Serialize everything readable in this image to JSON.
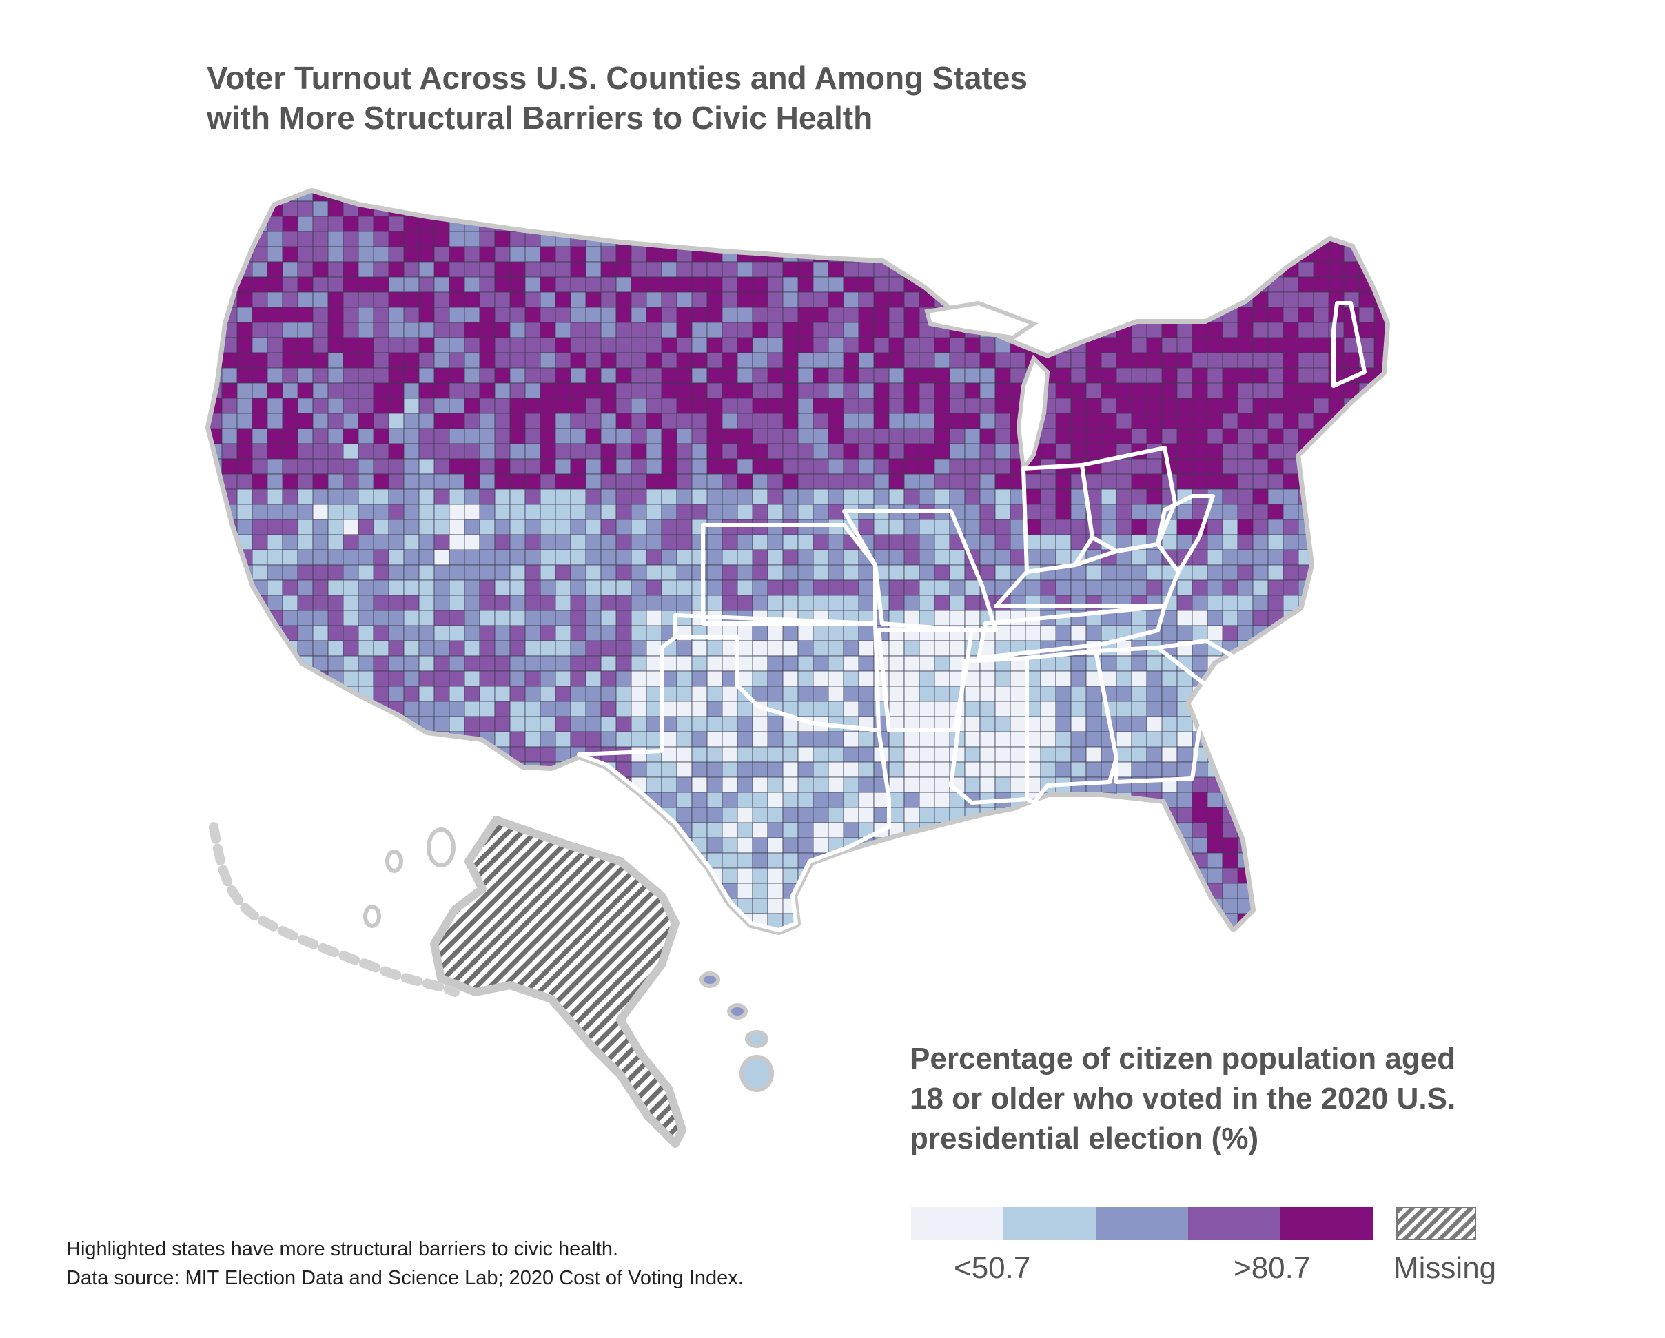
{
  "title": {
    "line1": "Voter Turnout Across U.S. Counties and Among States",
    "line2": "with More Structural Barriers to Civic Health"
  },
  "legend": {
    "title_line1": "Percentage of citizen population aged",
    "title_line2": "18 or older who voted in the 2020 U.S.",
    "title_line3": "presidential election (%)",
    "low_label": "<50.7",
    "high_label": ">80.7",
    "missing_label": "Missing",
    "colors": [
      "#eef1f8",
      "#b3cde3",
      "#8c96c6",
      "#8856a7",
      "#810f7c"
    ],
    "missing_color": "#7a7a7a"
  },
  "footnote": {
    "line1": "Highlighted states have more structural barriers to civic health.",
    "line2": "Data source: MIT Election Data and Science Lab; 2020 Cost of Voting Index."
  },
  "map": {
    "highlight_outline_color": "#ffffff",
    "alaska": "missing"
  }
}
